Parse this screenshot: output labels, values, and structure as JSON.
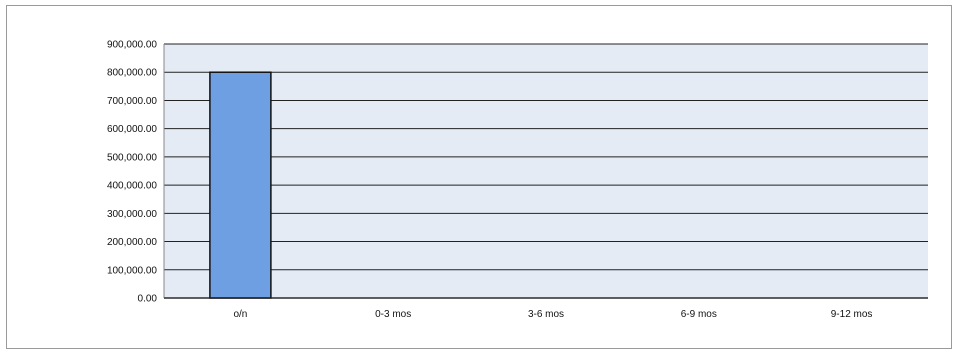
{
  "chart_data": {
    "type": "bar",
    "categories": [
      "o/n",
      "0-3 mos",
      "3-6 mos",
      "6-9 mos",
      "9-12 mos"
    ],
    "values": [
      800000,
      0,
      0,
      0,
      0
    ],
    "ylim": [
      0,
      900000
    ],
    "yticks": [
      "0.00",
      "100,000.00",
      "200,000.00",
      "300,000.00",
      "400,000.00",
      "500,000.00",
      "600,000.00",
      "700,000.00",
      "800,000.00",
      "900,000.00"
    ],
    "grid": true,
    "legend": "none",
    "colors": {
      "bar": "#6f9fe3",
      "bar_outline": "#111111",
      "plot_background": "#e4ebf5",
      "gridline": "#222222"
    }
  }
}
